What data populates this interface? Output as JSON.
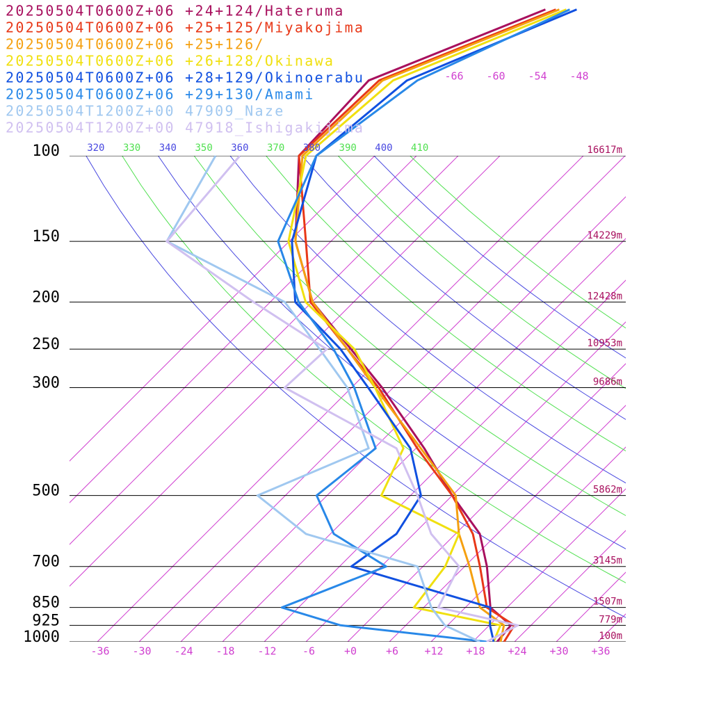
{
  "chart_data": {
    "type": "skewt",
    "log_scale": true,
    "skew": 45,
    "ylim": [
      1000,
      100
    ],
    "xlim": [
      -40,
      40
    ],
    "yticks": [
      100,
      150,
      200,
      250,
      300,
      500,
      700,
      850,
      925,
      1000
    ],
    "height_labels": [
      "16617m",
      "14229m",
      "12428m",
      "10953m",
      "9686m",
      "5862m",
      "3145m",
      "1507m",
      "779m",
      "100m"
    ],
    "xticks": [
      -36,
      -30,
      -24,
      -18,
      -12,
      {
        "value": -6,
        "label": "-6"
      },
      {
        "value": 0,
        "label": "+0"
      },
      {
        "value": 6,
        "label": "+6"
      },
      {
        "value": 12,
        "label": "+12"
      },
      {
        "value": 18,
        "label": "+18"
      },
      {
        "value": 24,
        "label": "+24"
      },
      {
        "value": 30,
        "label": "+30"
      },
      {
        "value": 36,
        "label": "+36"
      }
    ],
    "top_xticks": [
      -66,
      -60,
      -54,
      -48
    ],
    "isotherm_color": "#d040d0",
    "isobar_color": "#000000",
    "adiabats": [
      320,
      330,
      340,
      350,
      360,
      370,
      380,
      390,
      400,
      410
    ],
    "adiabat_colors": [
      "#4848e0",
      "#50e050",
      "#4848e0",
      "#50e050",
      "#4848e0",
      "#50e050",
      "#4848e0",
      "#50e050",
      "#4848e0",
      "#50e050"
    ],
    "levels": [
      1000,
      925,
      850,
      700,
      600,
      500,
      400,
      300,
      250,
      200,
      150,
      100,
      70,
      50
    ],
    "series": [
      {
        "name": "20250504T0600Z+06 +24+124/Hateruma",
        "color": "#a8105e",
        "values": [
          21.5,
          21.1,
          15.6,
          9.2,
          3.5,
          -6,
          -16.8,
          -31.6,
          -41.6,
          -53.9,
          -65.1,
          -76.9,
          -77.7,
          -62.5
        ]
      },
      {
        "name": "20250504T0600Z+06 +25+125/Miyakojima",
        "color": "#e83818",
        "values": [
          22.5,
          21.6,
          15.1,
          8.2,
          2.5,
          -6,
          -17.8,
          -32.1,
          -42.1,
          -54.2,
          -63.6,
          -76.9,
          -76.2,
          -61
        ]
      },
      {
        "name": "20250504T0600Z+06 +25+126/",
        "color": "#f5a010",
        "values": [
          22,
          20.1,
          14.1,
          6.7,
          0.5,
          -5.5,
          -17.3,
          -32.6,
          -42.1,
          -53.9,
          -65.1,
          -76.4,
          -75.7,
          -60.5
        ]
      },
      {
        "name": "20250504T0600Z+06 +26+128/Okinawa",
        "color": "#f0e010",
        "values": [
          21,
          19.6,
          4.6,
          3.2,
          0.5,
          -16.2,
          -19.8,
          -32.6,
          -41.1,
          -54.9,
          -66.1,
          -75.9,
          -74.2,
          -59.5
        ]
      },
      {
        "name": "20250504T0600Z+06 +28+129/Okinoerabu",
        "color": "#1050e0",
        "values": [
          21,
          18.1,
          15.6,
          -10.3,
          -8.5,
          -10.5,
          -18.8,
          -33.6,
          -43.1,
          -56.4,
          -65.6,
          -74.4,
          -72.2,
          -58
        ]
      },
      {
        "name": "20250504T0600Z+06 +29+130/Amami",
        "color": "#2888e8",
        "values": [
          20,
          -3.4,
          -14.4,
          -5.3,
          -17.5,
          -25.5,
          -23.8,
          -35.6,
          -44.1,
          -55.9,
          -67.6,
          -74.4,
          -70.7,
          -59
        ]
      },
      {
        "name": "20250504T1200Z+00 47909_Naze",
        "color": "#a0c8f0",
        "values": [
          19,
          11.6,
          7.1,
          -0.8,
          -21.5,
          -34,
          -24.8,
          -36.6,
          -46.1,
          -57.9,
          -83.6,
          -88.9,
          null,
          null
        ]
      },
      {
        "name": "20250504T1200Z+00 47918_Ishigakijima",
        "color": "#d0c0f0",
        "values": [
          20,
          22.1,
          8.1,
          5.2,
          -3.5,
          -11,
          -20.8,
          -45.6,
          -45.1,
          -62.4,
          -83.6,
          -85.4,
          null,
          null
        ]
      }
    ]
  }
}
